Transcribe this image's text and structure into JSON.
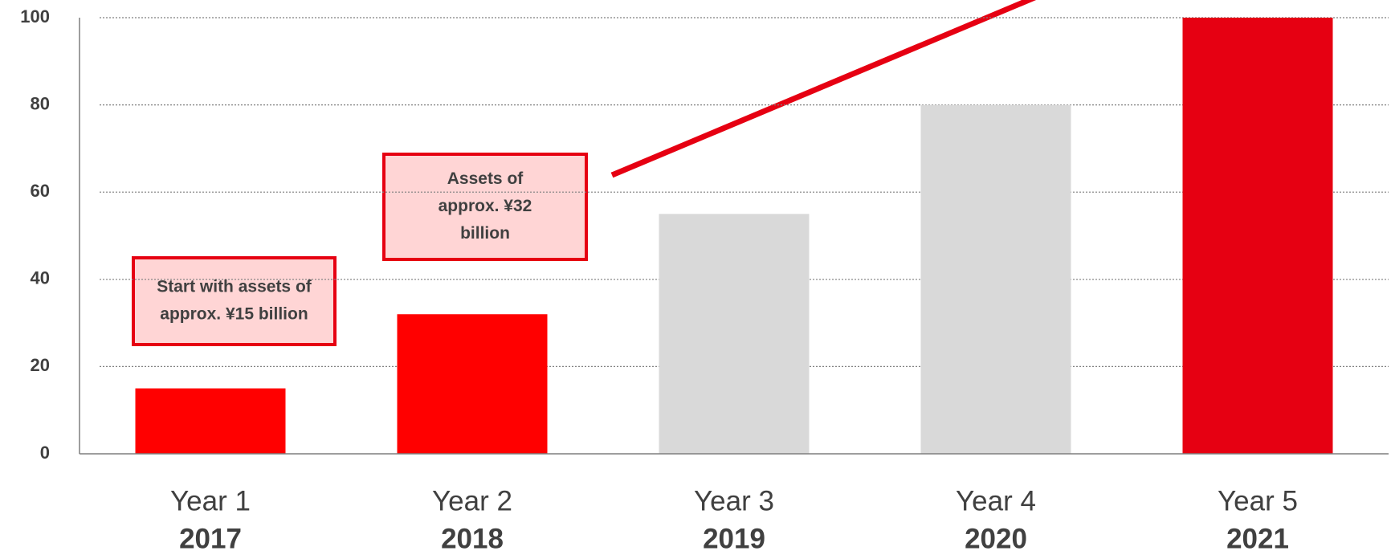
{
  "chart_data": {
    "type": "bar",
    "categories": [
      "Year 1",
      "Year 2",
      "Year 3",
      "Year 4",
      "Year 5"
    ],
    "category_years": [
      "2017",
      "2018",
      "2019",
      "2020",
      "2021"
    ],
    "values": [
      15,
      32,
      55,
      80,
      100
    ],
    "colors": [
      "#ff0000",
      "#ff0000",
      "#d9d9d9",
      "#d9d9d9",
      "#e60012"
    ],
    "ylim": [
      0,
      100
    ],
    "yticks": [
      0,
      20,
      40,
      60,
      80,
      100
    ],
    "grid": true,
    "annotations": [
      {
        "lines": [
          "Start with assets of",
          "approx. ¥15 billion"
        ]
      },
      {
        "lines": [
          "Assets of",
          "approx. ¥32",
          "billion"
        ]
      }
    ]
  }
}
